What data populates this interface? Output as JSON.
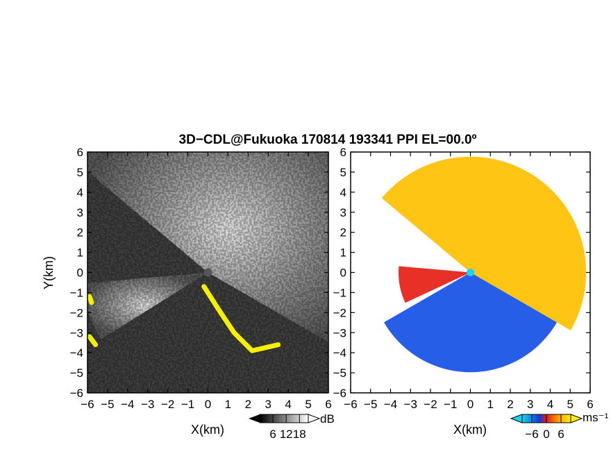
{
  "figure": {
    "title": "3D−CDL@Fukuoka 170814 193341 PPI EL=00.0º"
  },
  "panels": [
    {
      "name": "reflectivity",
      "xlabel": "X(km)",
      "ylabel": "Y(km)",
      "colorbar": {
        "unit": "dB",
        "tick_labels": [
          "6",
          "12",
          "18"
        ],
        "ticks": [
          6,
          12,
          18
        ],
        "range": [
          0,
          22
        ],
        "colors": [
          "#000000",
          "#ffffff"
        ]
      }
    },
    {
      "name": "radial-velocity",
      "xlabel": "X(km)",
      "ylabel": "",
      "colorbar": {
        "unit": "ms⁻¹",
        "tick_labels": [
          "−6",
          "0",
          "6"
        ],
        "ticks": [
          -6,
          0,
          6
        ],
        "range": [
          -10,
          10
        ],
        "colors": [
          "#19d3f0",
          "#0a3cdc",
          "#e61e14",
          "#ffa000",
          "#fff000"
        ]
      }
    }
  ],
  "chart_data": [
    {
      "type": "heatmap",
      "name": "reflectivity-ppi",
      "title": "3D−CDL@Fukuoka 170814 193341 PPI EL=00.0º",
      "xlabel": "X(km)",
      "ylabel": "Y(km)",
      "xlim": [
        -6,
        6
      ],
      "ylim": [
        -6,
        6
      ],
      "xticks": [
        -6,
        -5,
        -4,
        -3,
        -2,
        -1,
        0,
        1,
        2,
        3,
        4,
        5,
        6
      ],
      "yticks": [
        -6,
        -5,
        -4,
        -3,
        -2,
        -1,
        0,
        1,
        2,
        3,
        4,
        5,
        6
      ],
      "tick_labels": [
        "−6",
        "−5",
        "−4",
        "−3",
        "−2",
        "−1",
        "0",
        "1",
        "2",
        "3",
        "4",
        "5",
        "6"
      ],
      "colorbar_unit": "dB",
      "colorbar_ticks": [
        6,
        12,
        18
      ],
      "radar_center": [
        0,
        0
      ],
      "yellow_echo_paths": [
        [
          [
            -0.2,
            -0.7
          ],
          [
            0.5,
            -1.8
          ],
          [
            1.3,
            -3.0
          ],
          [
            2.2,
            -3.9
          ],
          [
            3.5,
            -3.6
          ]
        ],
        [
          [
            -5.9,
            -3.2
          ],
          [
            -5.6,
            -3.6
          ]
        ],
        [
          [
            -5.9,
            -1.2
          ],
          [
            -5.8,
            -1.5
          ]
        ]
      ]
    },
    {
      "type": "heatmap",
      "name": "doppler-velocity-ppi",
      "xlabel": "X(km)",
      "xlim": [
        -6,
        6
      ],
      "ylim": [
        -6,
        6
      ],
      "xticks": [
        -6,
        -5,
        -4,
        -3,
        -2,
        -1,
        0,
        1,
        2,
        3,
        4,
        5,
        6
      ],
      "yticks": [
        -6,
        -5,
        -4,
        -3,
        -2,
        -1,
        0,
        1,
        2,
        3,
        4,
        5,
        6
      ],
      "tick_labels": [
        "−6",
        "−5",
        "−4",
        "−3",
        "−2",
        "−1",
        "0",
        "1",
        "2",
        "3",
        "4",
        "5",
        "6"
      ],
      "colorbar_unit": "ms⁻¹",
      "colorbar_ticks": [
        -6,
        0,
        6
      ],
      "radar_center": [
        0,
        0
      ],
      "regions": [
        {
          "name": "receding",
          "velocity_sign": "positive",
          "color": "#ffc000",
          "azimuth_deg": [
            -30,
            140
          ],
          "max_range_km": 5.8
        },
        {
          "name": "approaching",
          "velocity_sign": "negative",
          "color": "#1450e6",
          "azimuth_deg": [
            -150,
            -30
          ],
          "max_range_km": 5.0
        },
        {
          "name": "receding-west",
          "velocity_sign": "positive",
          "color": "#e61e14",
          "azimuth_deg": [
            175,
            205
          ],
          "max_range_km": 3.6
        }
      ]
    }
  ]
}
